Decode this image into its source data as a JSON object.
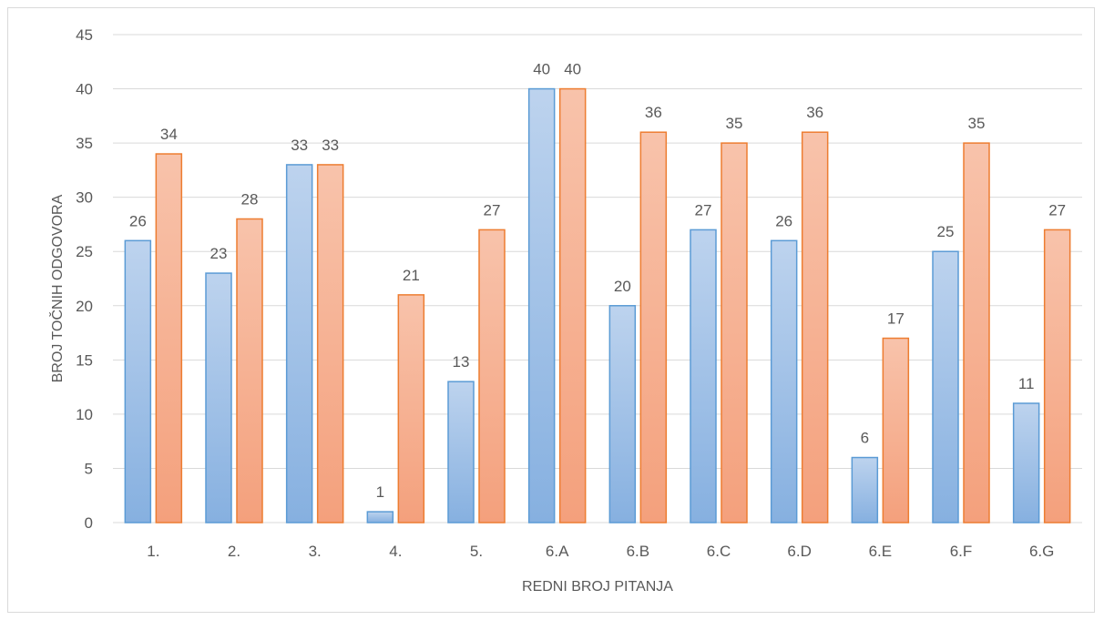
{
  "chart_data": {
    "type": "bar",
    "title": "",
    "xlabel": "REDNI BROJ PITANJA",
    "ylabel": "BROJ TOČNIH ODGOVORA",
    "ylim": [
      0,
      45
    ],
    "yticks": [
      0,
      5,
      10,
      15,
      20,
      25,
      30,
      35,
      40,
      45
    ],
    "grid": true,
    "legend": "none",
    "categories": [
      "1.",
      "2.",
      "3.",
      "4.",
      "5.",
      "6.A",
      "6.B",
      "6.C",
      "6.D",
      "6.E",
      "6.F",
      "6.G"
    ],
    "series": [
      {
        "values": [
          26,
          23,
          33,
          1,
          13,
          40,
          20,
          27,
          26,
          6,
          25,
          11
        ],
        "color": "#5b9bd5",
        "fill_top": "#bdd3ee",
        "fill_bottom": "#86b0e0"
      },
      {
        "values": [
          34,
          28,
          33,
          21,
          27,
          40,
          36,
          35,
          36,
          17,
          35,
          27
        ],
        "color": "#ed7d31",
        "fill_top": "#f8c3ab",
        "fill_bottom": "#f4a07c"
      }
    ]
  }
}
